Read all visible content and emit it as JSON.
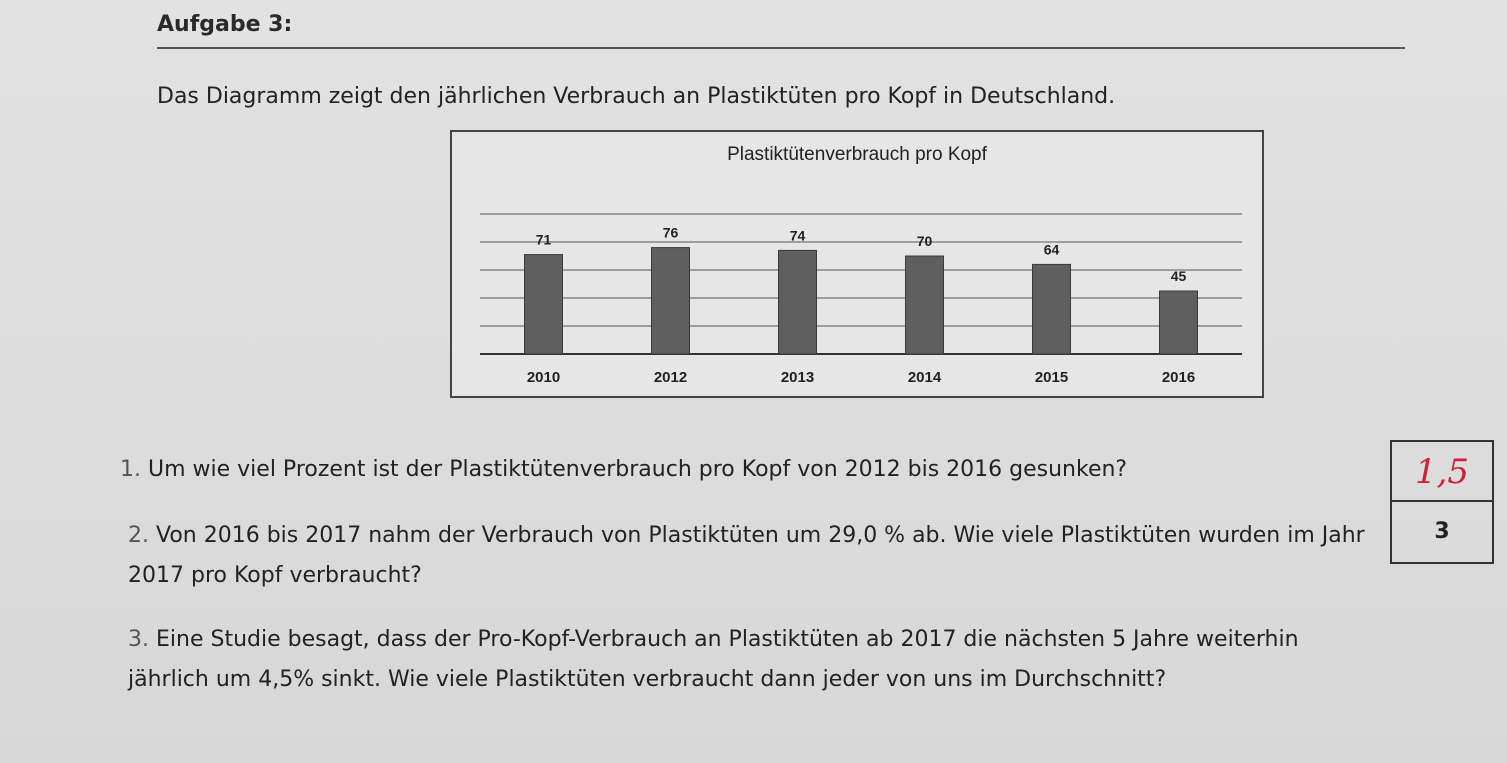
{
  "heading": "Aufgabe 3:",
  "intro": "Das Diagramm zeigt den jährlichen Verbrauch an Plastiktüten pro Kopf in Deutschland.",
  "chart_data": {
    "type": "bar",
    "title": "Plastiktütenverbrauch pro Kopf",
    "categories": [
      "2010",
      "2012",
      "2013",
      "2014",
      "2015",
      "2016"
    ],
    "values": [
      71,
      76,
      74,
      70,
      64,
      45
    ],
    "data_labels": [
      "71",
      "76",
      "74",
      "70",
      "64",
      "45"
    ],
    "xlabel": "",
    "ylabel": "",
    "y_axis_labels_shown": false,
    "grid": true,
    "ylim": [
      0,
      100
    ],
    "bar_color": "#5f5f5f"
  },
  "questions": [
    {
      "number": "1.",
      "text": "Um wie viel Prozent ist der Plastiktütenverbrauch pro Kopf von 2012 bis 2016 gesunken?"
    },
    {
      "number": "2.",
      "text": "Von 2016 bis 2017 nahm der Verbrauch von Plastiktüten um 29,0 % ab. Wie viele Plastiktüten wurden im Jahr 2017 pro Kopf verbraucht?"
    },
    {
      "number": "3.",
      "text": "Eine Studie besagt, dass der Pro-Kopf-Verbrauch an Plastiktüten ab 2017 die nächsten 5 Jahre weiterhin jährlich um 4,5% sinkt. Wie viele Plastiktüten verbraucht dann jeder von uns im Durchschnitt?"
    }
  ],
  "points": {
    "handwritten": "1,5",
    "printed": "3",
    "handwritten_color": "#cc2233"
  }
}
